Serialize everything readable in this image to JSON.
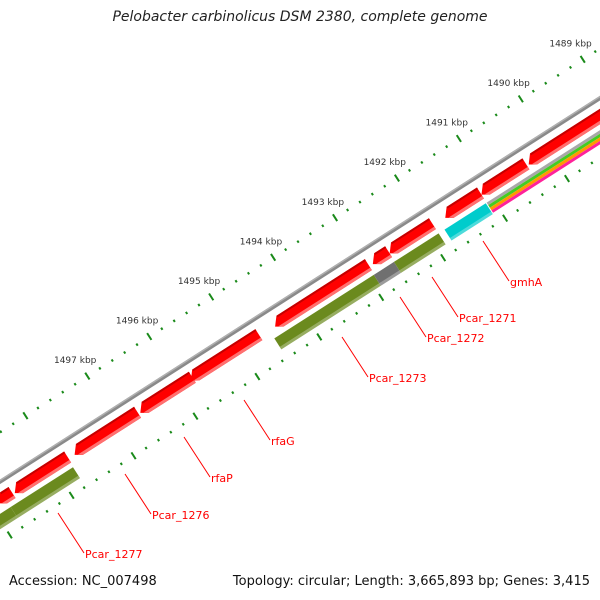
{
  "title": "Pelobacter carbinolicus DSM 2380, complete genome",
  "footer": {
    "accession": "Accession: NC_007498",
    "topology": "Topology: circular; Length: 3,665,893 bp; Genes: 3,415"
  },
  "colors": {
    "gene_forward": "#ff0000",
    "feature_olive": "#6b8a1e",
    "feature_cyan": "#00cccc",
    "feature_gray": "#707070",
    "backbone": "#8a8a8a",
    "tick": "#1a8a1a",
    "label": "#ff0000"
  },
  "kbp_ticks": [
    "1497 kbp",
    "1496 kbp",
    "1495 kbp",
    "1494 kbp",
    "1493 kbp",
    "1492 kbp",
    "1491 kbp",
    "1490 kbp",
    "1489 kbp"
  ],
  "gene_labels": [
    "gmhA",
    "Pcar_1271",
    "Pcar_1272",
    "Pcar_1273",
    "rfaG",
    "rfaP",
    "Pcar_1276",
    "Pcar_1277"
  ]
}
